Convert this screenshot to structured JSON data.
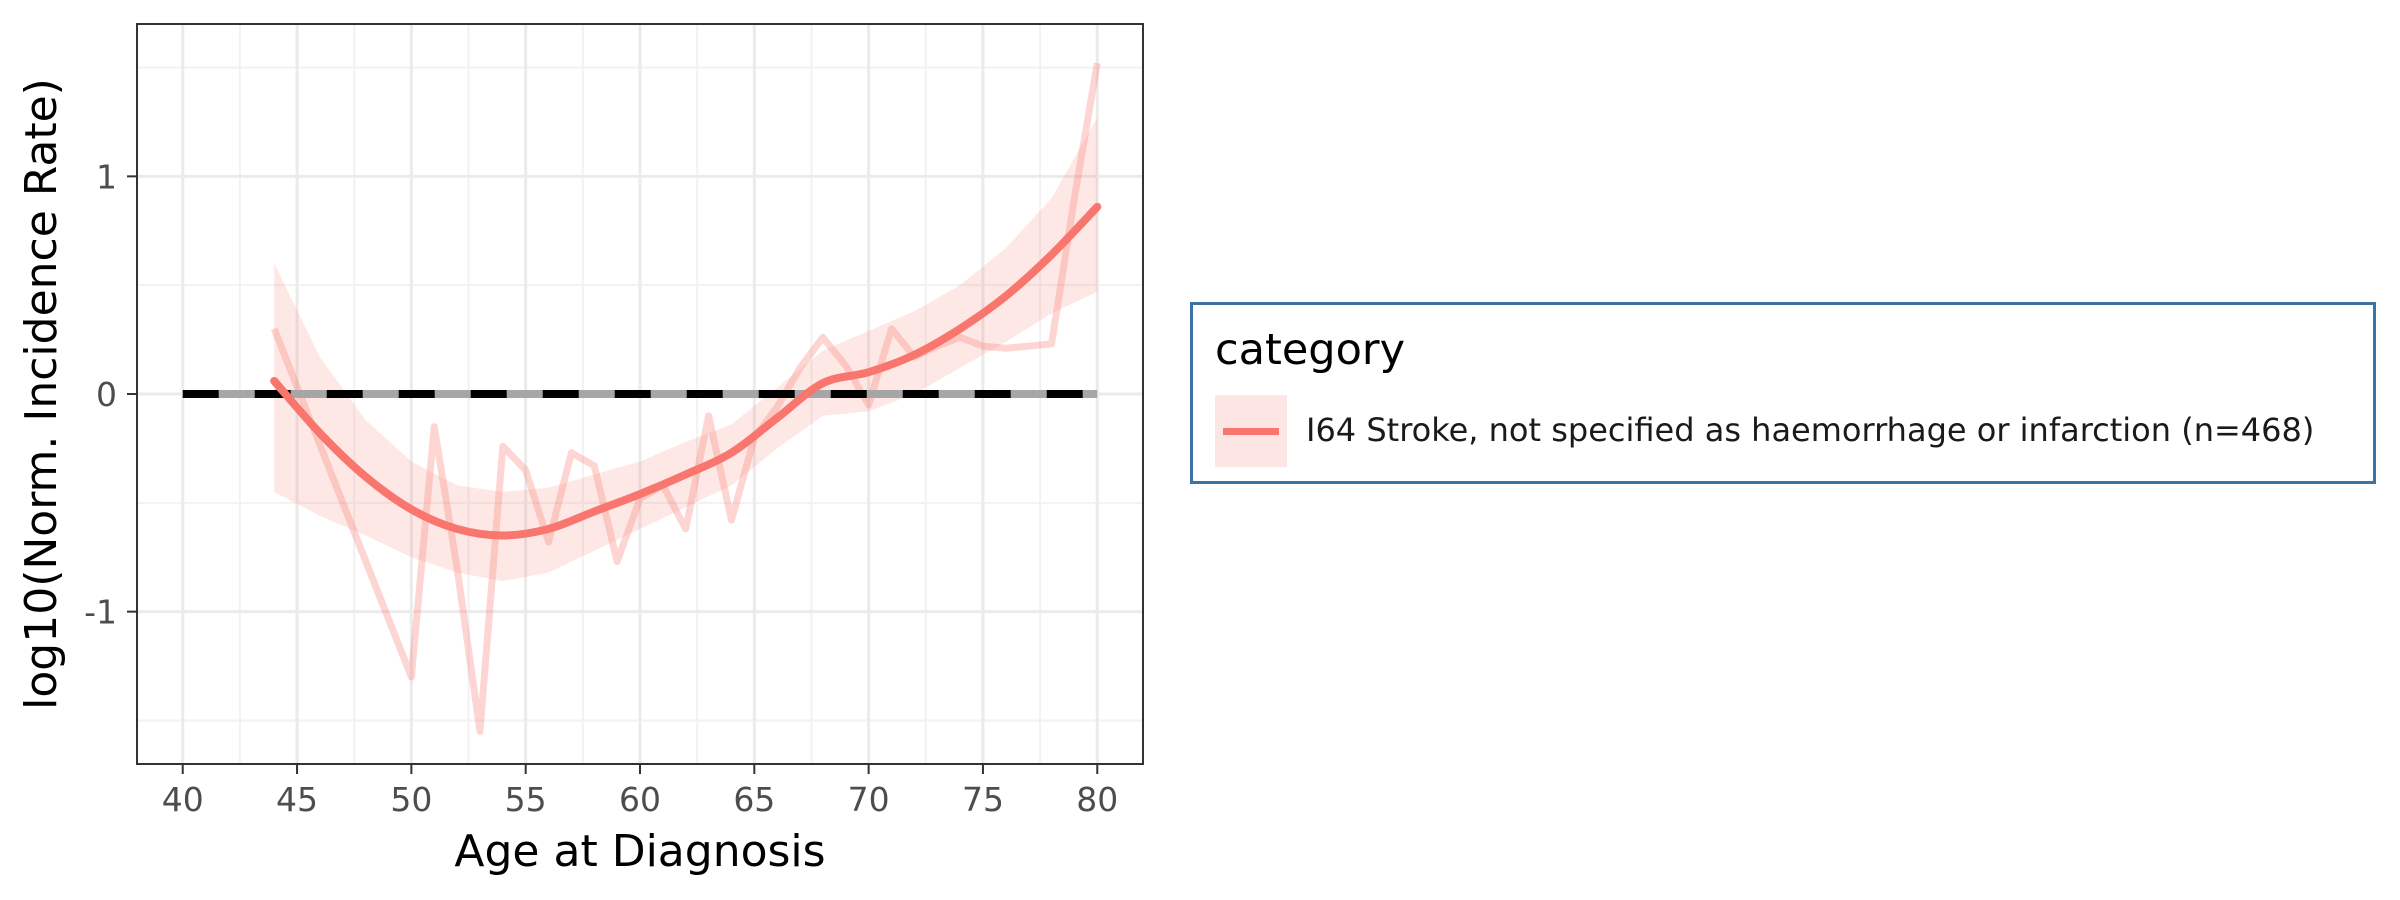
{
  "chart_data": {
    "type": "line",
    "xlabel": "Age at Diagnosis",
    "ylabel": "log10(Norm. Incidence Rate)",
    "xlim": [
      38,
      82
    ],
    "ylim": [
      -1.7,
      1.7
    ],
    "x_ticks": [
      40,
      45,
      50,
      55,
      60,
      65,
      70,
      75,
      80
    ],
    "y_ticks": [
      1,
      0,
      -1
    ],
    "y_tick_labels": [
      "1",
      "0",
      "-1"
    ],
    "grid": true,
    "reference_line": {
      "y": 0,
      "x_range": [
        40,
        80
      ],
      "style": "dashed"
    },
    "series": [
      {
        "name": "I64 Stroke, not specified as haemorrhage or infarction (n=468)",
        "color": "#f8766d",
        "raw": {
          "x": [
            44,
            50,
            51,
            52,
            53,
            54,
            55,
            56,
            57,
            58,
            59,
            60,
            61,
            62,
            63,
            64,
            65,
            66,
            67,
            68,
            69,
            70,
            71,
            72,
            73,
            74,
            75,
            76,
            77,
            78,
            79,
            80
          ],
          "y": [
            0.3,
            -1.3,
            -0.15,
            -0.8,
            -1.55,
            -0.24,
            -0.35,
            -0.68,
            -0.27,
            -0.33,
            -0.77,
            -0.48,
            -0.42,
            -0.62,
            -0.1,
            -0.58,
            -0.2,
            -0.06,
            0.12,
            0.26,
            0.13,
            -0.05,
            0.3,
            0.17,
            0.22,
            0.26,
            0.22,
            0.21,
            0.22,
            0.23,
            0.9,
            1.52
          ]
        },
        "smooth": {
          "x": [
            44,
            46,
            48,
            50,
            52,
            54,
            56,
            58,
            60,
            62,
            64,
            66,
            68,
            70,
            72,
            74,
            76,
            78,
            80
          ],
          "y": [
            0.06,
            -0.18,
            -0.38,
            -0.53,
            -0.62,
            -0.65,
            -0.62,
            -0.54,
            -0.46,
            -0.37,
            -0.27,
            -0.11,
            0.05,
            0.1,
            0.18,
            0.3,
            0.45,
            0.64,
            0.86
          ]
        },
        "ci_upper": [
          0.6,
          0.17,
          -0.12,
          -0.31,
          -0.42,
          -0.45,
          -0.43,
          -0.37,
          -0.31,
          -0.22,
          -0.14,
          0.03,
          0.2,
          0.29,
          0.38,
          0.5,
          0.67,
          0.9,
          1.27
        ],
        "ci_lower": [
          -0.45,
          -0.56,
          -0.65,
          -0.75,
          -0.82,
          -0.86,
          -0.82,
          -0.72,
          -0.62,
          -0.52,
          -0.42,
          -0.25,
          -0.1,
          -0.08,
          0.0,
          0.12,
          0.24,
          0.37,
          0.47
        ]
      }
    ]
  },
  "legend": {
    "title": "category",
    "entries": [
      {
        "label": "I64 Stroke, not specified as haemorrhage or infarction (n=468)",
        "color": "#f8766d"
      }
    ]
  }
}
